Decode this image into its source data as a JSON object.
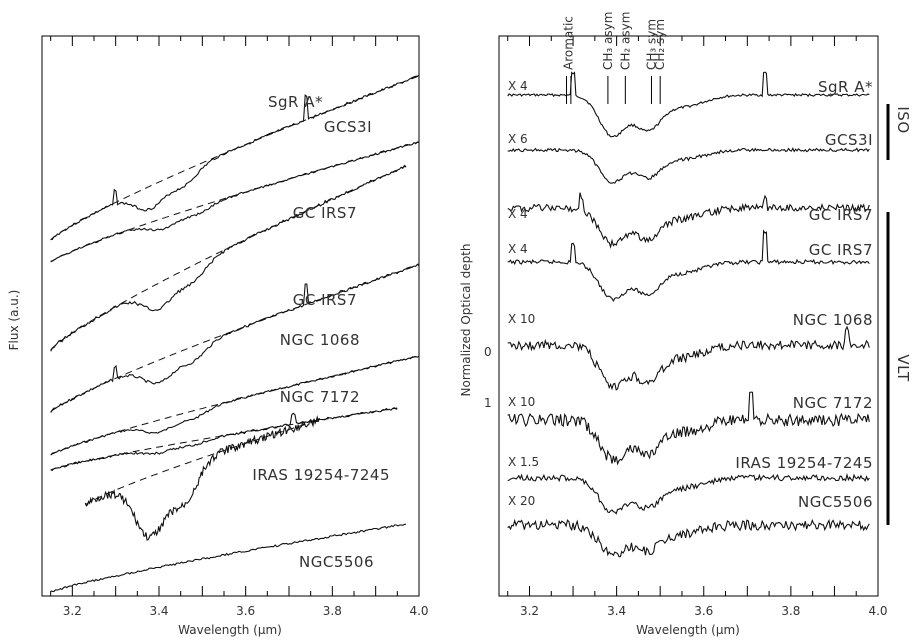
{
  "chart_data": [
    {
      "type": "line",
      "panel": "left",
      "ylabel": "Flux (a.u.)",
      "xlabel": "Wavelength (μm)",
      "xlim": [
        3.13,
        4.0
      ],
      "x_ticks": [
        "3.2",
        "3.4",
        "3.6",
        "3.8",
        "4.0"
      ],
      "y_tick_labels": "none",
      "series": [
        {
          "name": "SgR A*",
          "x_range": [
            3.15,
            4.0
          ],
          "features": {
            "absorption_center": 3.38,
            "emission_line": 3.74
          }
        },
        {
          "name": "GCS3I",
          "x_range": [
            3.15,
            4.0
          ],
          "features": {
            "absorption_center": 3.41
          }
        },
        {
          "name": "GC IRS7",
          "x_range": [
            3.15,
            3.97
          ],
          "features": {
            "absorption_center": 3.4
          }
        },
        {
          "name": "GC IRS7",
          "x_range": [
            3.15,
            4.0
          ],
          "features": {
            "absorption_center": 3.4,
            "emission_line": 3.74
          }
        },
        {
          "name": "NGC 1068",
          "x_range": [
            3.15,
            4.0
          ],
          "features": {
            "absorption_center": 3.4
          }
        },
        {
          "name": "NGC 7172",
          "x_range": [
            3.15,
            3.95
          ],
          "features": {
            "absorption_center": 3.4
          }
        },
        {
          "name": "IRAS 19254-7245",
          "x_range": [
            3.23,
            3.77
          ],
          "features": {
            "absorption_center": 3.38
          }
        },
        {
          "name": "NGC5506",
          "x_range": [
            3.15,
            3.97
          ],
          "features": {}
        }
      ]
    },
    {
      "type": "line",
      "panel": "right",
      "ylabel": "Normalized Optical depth",
      "xlabel": "Wavelength (μm)",
      "xlim": [
        3.13,
        4.0
      ],
      "x_ticks": [
        "3.2",
        "3.4",
        "3.6",
        "3.8",
        "4.0"
      ],
      "y_tick_labels": [
        "0",
        "1"
      ],
      "feature_markers": [
        {
          "label": "Aromatic",
          "x": [
            3.285,
            3.295
          ]
        },
        {
          "label": "CH₃ asym",
          "x": [
            3.38
          ]
        },
        {
          "label": "CH₂ asym",
          "x": [
            3.42
          ]
        },
        {
          "label": "CH₃ sym",
          "x": [
            3.48
          ]
        },
        {
          "label": "CH₂ sym",
          "x": [
            3.5
          ]
        }
      ],
      "series": [
        {
          "name": "SgR A*",
          "scale": "X 4",
          "depth_at_3.4": 1.0
        },
        {
          "name": "GCS3I",
          "scale": "X 6",
          "depth_at_3.4": 1.0
        },
        {
          "name": "GC IRS7",
          "scale": "X 4",
          "depth_at_3.4": 1.0
        },
        {
          "name": "GC IRS7",
          "scale": "X 4",
          "depth_at_3.4": 1.0
        },
        {
          "name": "NGC 1068",
          "scale": "X 10",
          "depth_at_3.4": 1.0
        },
        {
          "name": "NGC 7172",
          "scale": "X 10",
          "depth_at_3.4": 1.0
        },
        {
          "name": "IRAS 19254-7245",
          "scale": "X 1.5",
          "depth_at_3.4": 1.0
        },
        {
          "name": "NGC5506",
          "scale": "X 20",
          "depth_at_3.4": 1.0
        }
      ],
      "instrument_groups": [
        {
          "label": "ISO",
          "series_count": 2
        },
        {
          "label": "VLT",
          "series_count": 6
        }
      ]
    }
  ]
}
